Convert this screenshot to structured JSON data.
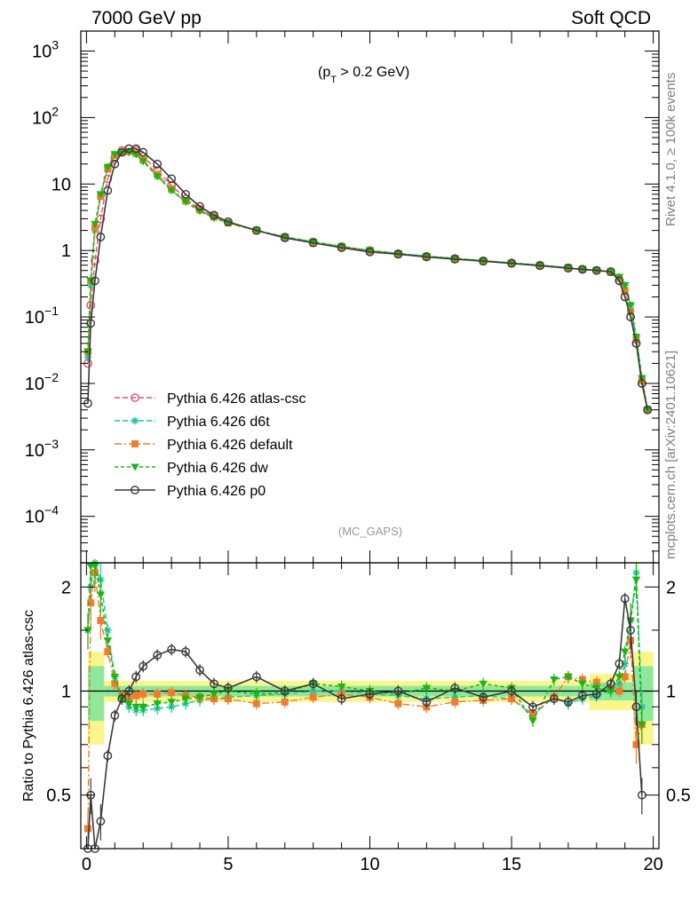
{
  "header": {
    "left": "7000 GeV pp",
    "right": "Soft QCD"
  },
  "side_labels": {
    "upper": "Rivet 4.1.0, ≥ 100k events",
    "lower": "mcplots.cern.ch [arXiv:2401.10621]"
  },
  "annotation": {
    "cut_prefix": "(p",
    "cut_sub": "T",
    "cut_suffix": " > 0.2 GeV)"
  },
  "analysis": "(MC_GAPS)",
  "ratio_ylabel": "Ratio to Pythia 6.426 atlas-csc",
  "colors": {
    "atlas_csc": "#e8516d",
    "d6t": "#17c89b",
    "default": "#f07d2d",
    "dw": "#20b412",
    "p0": "#3a3a3a",
    "band_yellow": "#fbf58c",
    "band_green": "#8ee89a"
  },
  "chart_data": [
    {
      "type": "line",
      "title": "",
      "xlabel": "",
      "ylabel": "",
      "xlim": [
        -0.2,
        20.2
      ],
      "ylim": [
        2e-05,
        2000
      ],
      "yscale": "log",
      "x_ticks": [
        "0",
        "5",
        "10",
        "15",
        "20"
      ],
      "y_tick_labels": [
        {
          "base": "10",
          "exp": "3"
        },
        {
          "base": "10",
          "exp": "2"
        },
        {
          "base": "10",
          "exp": ""
        },
        {
          "base": "1",
          "exp": ""
        },
        {
          "base": "10",
          "exp": "−1"
        },
        {
          "base": "10",
          "exp": "−2"
        },
        {
          "base": "10",
          "exp": "−3"
        },
        {
          "base": "10",
          "exp": "−4"
        }
      ],
      "y_tick_values": [
        1000,
        100,
        10,
        1,
        0.1,
        0.01,
        0.001,
        0.0001
      ],
      "x": [
        0.05,
        0.15,
        0.3,
        0.5,
        0.75,
        1.0,
        1.25,
        1.5,
        1.75,
        2.0,
        2.5,
        3.0,
        3.5,
        4.0,
        4.5,
        5.0,
        6.0,
        7.0,
        8.0,
        9.0,
        10.0,
        11.0,
        12.0,
        13.0,
        14.0,
        15.0,
        16.0,
        17.0,
        17.5,
        18.0,
        18.5,
        18.8,
        19.0,
        19.2,
        19.4,
        19.6,
        19.8
      ],
      "series": [
        {
          "name": "Pythia 6.426 atlas-csc",
          "values": [
            0.02,
            0.15,
            0.7,
            3.0,
            12,
            25,
            32,
            34,
            32,
            26,
            16,
            9.5,
            6.0,
            4.2,
            3.3,
            2.7,
            2.0,
            1.6,
            1.35,
            1.15,
            1.0,
            0.9,
            0.82,
            0.76,
            0.7,
            0.65,
            0.6,
            0.55,
            0.52,
            0.5,
            0.48,
            0.35,
            0.2,
            0.1,
            0.04,
            0.01,
            0.004
          ]
        },
        {
          "name": "Pythia 6.426 d6t",
          "values": [
            0.025,
            0.3,
            2.0,
            6.5,
            18,
            28,
            30,
            30,
            28,
            22,
            13,
            8.0,
            5.4,
            4.0,
            3.1,
            2.6,
            2.0,
            1.6,
            1.35,
            1.15,
            1.0,
            0.9,
            0.82,
            0.76,
            0.7,
            0.65,
            0.6,
            0.55,
            0.52,
            0.5,
            0.48,
            0.4,
            0.3,
            0.15,
            0.05,
            0.012,
            0.004
          ]
        },
        {
          "name": "Pythia 6.426 default",
          "values": [
            0.03,
            0.35,
            2.2,
            6.5,
            17,
            27,
            30,
            31,
            29,
            23,
            14,
            8.5,
            5.6,
            4.1,
            3.2,
            2.6,
            2.0,
            1.55,
            1.3,
            1.12,
            1.0,
            0.88,
            0.8,
            0.74,
            0.69,
            0.64,
            0.59,
            0.55,
            0.52,
            0.5,
            0.47,
            0.38,
            0.25,
            0.12,
            0.045,
            0.011,
            0.004
          ]
        },
        {
          "name": "Pythia 6.426 dw",
          "values": [
            0.03,
            0.35,
            2.5,
            7.0,
            18,
            28,
            30,
            30,
            28,
            22,
            13,
            8.0,
            5.4,
            3.9,
            3.1,
            2.6,
            2.0,
            1.6,
            1.35,
            1.15,
            1.0,
            0.9,
            0.82,
            0.76,
            0.7,
            0.65,
            0.6,
            0.55,
            0.52,
            0.5,
            0.48,
            0.4,
            0.3,
            0.15,
            0.05,
            0.012,
            0.004
          ]
        },
        {
          "name": "Pythia 6.426 p0",
          "values": [
            0.005,
            0.08,
            0.35,
            1.6,
            8,
            20,
            30,
            34,
            34,
            30,
            20,
            12,
            7.0,
            4.6,
            3.4,
            2.7,
            2.0,
            1.55,
            1.3,
            1.1,
            0.95,
            0.88,
            0.8,
            0.74,
            0.69,
            0.64,
            0.59,
            0.54,
            0.52,
            0.5,
            0.48,
            0.35,
            0.2,
            0.1,
            0.04,
            0.01,
            0.004
          ]
        }
      ]
    },
    {
      "type": "line",
      "title": "",
      "xlabel": "",
      "ylabel": "Ratio to Pythia 6.426 atlas-csc",
      "xlim": [
        -0.2,
        20.2
      ],
      "ylim": [
        0.35,
        2.35
      ],
      "x_ticks": [
        "0",
        "5",
        "10",
        "15",
        "20"
      ],
      "y_ticks": [
        "0.5",
        "1",
        "2"
      ],
      "y_tick_values": [
        0.5,
        1,
        2
      ],
      "x": [
        0.05,
        0.15,
        0.3,
        0.5,
        0.75,
        1.0,
        1.25,
        1.5,
        1.75,
        2.0,
        2.5,
        3.0,
        3.5,
        4.0,
        4.5,
        5.0,
        6.0,
        7.0,
        8.0,
        9.0,
        10.0,
        11.0,
        12.0,
        13.0,
        14.0,
        15.0,
        15.75,
        16.5,
        17.0,
        17.5,
        18.0,
        18.5,
        18.8,
        19.0,
        19.2,
        19.4,
        19.6
      ],
      "series": [
        {
          "name": "Pythia 6.426 atlas-csc",
          "values": [
            1,
            1,
            1,
            1,
            1,
            1,
            1,
            1,
            1,
            1,
            1,
            1,
            1,
            1,
            1,
            1,
            1,
            1,
            1,
            1,
            1,
            1,
            1,
            1,
            1,
            1,
            1,
            1,
            1,
            1,
            1,
            1,
            1,
            1,
            1,
            1,
            1
          ]
        },
        {
          "name": "Pythia 6.426 d6t",
          "values": [
            1.5,
            2.0,
            2.5,
            2.1,
            1.5,
            1.1,
            0.95,
            0.9,
            0.88,
            0.88,
            0.89,
            0.9,
            0.92,
            0.94,
            0.95,
            0.96,
            0.97,
            0.98,
            1.0,
            1.0,
            0.98,
            0.97,
            0.95,
            0.96,
            0.97,
            0.95,
            0.85,
            0.96,
            0.92,
            0.95,
            0.97,
            1.0,
            1.05,
            1.2,
            1.6,
            2.2,
            0.9
          ]
        },
        {
          "name": "Pythia 6.426 default",
          "values": [
            0.4,
            1.8,
            2.2,
            1.6,
            1.3,
            1.05,
            0.97,
            0.95,
            0.97,
            0.98,
            0.98,
            0.99,
            0.97,
            0.96,
            0.95,
            0.95,
            0.92,
            0.93,
            0.96,
            0.98,
            0.96,
            0.92,
            0.9,
            0.93,
            0.94,
            0.95,
            0.86,
            0.96,
            1.1,
            1.08,
            1.06,
            1.02,
            1.0,
            1.1,
            1.4,
            0.7,
            0.8
          ]
        },
        {
          "name": "Pythia 6.426 dw",
          "values": [
            1.5,
            2.3,
            2.3,
            1.9,
            1.4,
            1.1,
            0.95,
            0.92,
            0.9,
            0.9,
            0.92,
            0.93,
            0.95,
            0.96,
            0.98,
            1.0,
            0.98,
            0.99,
            1.05,
            1.03,
            1.0,
            0.98,
            1.02,
            1.0,
            1.05,
            1.02,
            0.82,
            1.08,
            1.1,
            1.05,
            1.02,
            1.0,
            1.1,
            1.3,
            1.6,
            2.1,
            0.8
          ]
        },
        {
          "name": "Pythia 6.426 p0",
          "values": [
            0.2,
            0.5,
            0.3,
            0.42,
            0.65,
            0.85,
            0.95,
            1.0,
            1.1,
            1.18,
            1.27,
            1.32,
            1.3,
            1.15,
            1.05,
            1.02,
            1.1,
            1.0,
            1.05,
            0.95,
            0.98,
            1.0,
            0.93,
            1.02,
            0.96,
            1.0,
            0.9,
            0.95,
            0.93,
            0.97,
            0.98,
            1.05,
            1.2,
            1.85,
            1.5,
            0.9,
            0.5
          ]
        }
      ]
    }
  ]
}
